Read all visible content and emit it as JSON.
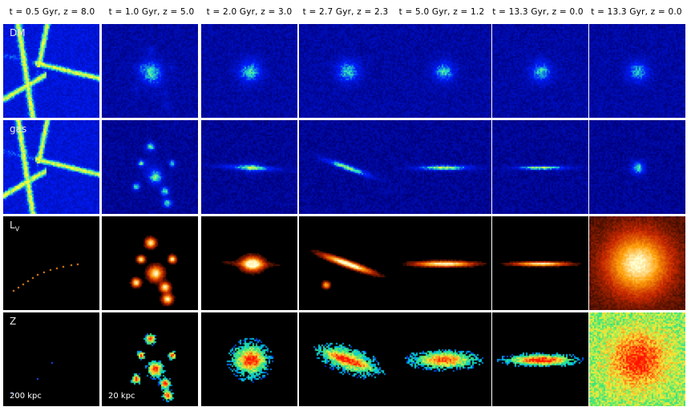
{
  "columns": [
    {
      "title": "t = 0.5 Gyr, z = 8.0",
      "scene": "filament"
    },
    {
      "title": "t = 1.0 Gyr, z = 5.0",
      "scene": "clumps"
    },
    {
      "title": "t = 2.0 Gyr, z = 3.0",
      "scene": "merger"
    },
    {
      "title": "t = 2.7 Gyr, z = 2.3",
      "scene": "tilted"
    },
    {
      "title": "t = 5.0 Gyr, z = 1.2",
      "scene": "disk"
    },
    {
      "title": "t = 13.3 Gyr, z = 0.0",
      "scene": "thin-disk"
    },
    {
      "title": "t = 13.3 Gyr, z = 0.0",
      "scene": "face-on"
    }
  ],
  "rows": [
    {
      "label": "DM",
      "quantity": "dark-matter"
    },
    {
      "label": "gas",
      "quantity": "gas"
    },
    {
      "label": "L",
      "label_sub": "V",
      "quantity": "luminosity"
    },
    {
      "label": "Z",
      "quantity": "metallicity"
    }
  ],
  "scale_bars": {
    "first_column": "200 kpc",
    "other_columns": "20 kpc"
  },
  "colors": {
    "background": "#ffffff",
    "panel_background": "#000000",
    "density_low": "#00007a",
    "density_high": "#00e0ff",
    "luminosity_peak": "#ffdd66",
    "metallicity_peak": "#ff2000"
  }
}
